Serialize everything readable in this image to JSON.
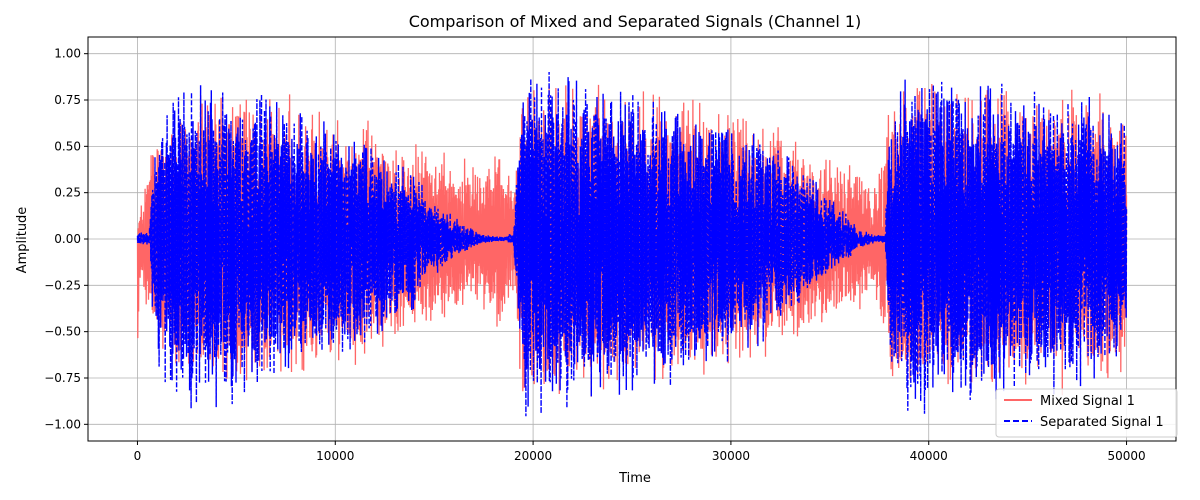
{
  "chart_data": {
    "type": "line",
    "title": "Comparison of Mixed and Separated Signals (Channel 1)",
    "xlabel": "Time",
    "ylabel": "Amplitude",
    "xlim": [
      -2500,
      52500
    ],
    "ylim": [
      -1.09,
      1.09
    ],
    "xticks": [
      0,
      10000,
      20000,
      30000,
      40000,
      50000
    ],
    "xtick_labels": [
      "0",
      "10000",
      "20000",
      "30000",
      "40000",
      "50000"
    ],
    "yticks": [
      -1.0,
      -0.75,
      -0.5,
      -0.25,
      0.0,
      0.25,
      0.5,
      0.75,
      1.0
    ],
    "ytick_labels": [
      "−1.00",
      "−0.75",
      "−0.50",
      "−0.25",
      "0.00",
      "0.25",
      "0.50",
      "0.75",
      "1.00"
    ],
    "grid": true,
    "legend_position": "lower-right",
    "series": [
      {
        "name": "Mixed Signal 1",
        "color": "#ff6666",
        "style": "solid",
        "envelope": {
          "x": [
            0,
            150,
            700,
            1500,
            2500,
            4000,
            6000,
            8000,
            10000,
            12000,
            14000,
            14500,
            16000,
            17500,
            18200,
            18800,
            19000,
            19500,
            22000,
            25000,
            28000,
            31000,
            33000,
            35000,
            36500,
            37200,
            37500,
            38000,
            40000,
            43000,
            46000,
            49000,
            50000
          ],
          "upper": [
            0.05,
            0.15,
            0.45,
            0.6,
            0.7,
            0.72,
            0.7,
            0.65,
            0.62,
            0.55,
            0.42,
            0.48,
            0.35,
            0.4,
            0.42,
            0.3,
            0.25,
            0.8,
            0.75,
            0.7,
            0.68,
            0.6,
            0.5,
            0.38,
            0.32,
            0.25,
            0.35,
            0.65,
            0.75,
            0.72,
            0.7,
            0.7,
            0.6
          ],
          "lower": [
            -0.75,
            -0.2,
            -0.45,
            -0.58,
            -0.65,
            -0.68,
            -0.68,
            -0.62,
            -0.6,
            -0.55,
            -0.42,
            -0.45,
            -0.35,
            -0.4,
            -0.42,
            -0.3,
            -0.25,
            -0.8,
            -0.75,
            -0.7,
            -0.66,
            -0.6,
            -0.5,
            -0.4,
            -0.33,
            -0.25,
            -0.35,
            -0.7,
            -0.75,
            -0.72,
            -0.7,
            -0.72,
            -0.6
          ]
        }
      },
      {
        "name": "Separated Signal 1",
        "color": "#0000ff",
        "style": "dashed",
        "envelope": {
          "x": [
            0,
            600,
            800,
            1500,
            2500,
            4000,
            6000,
            8000,
            10000,
            12000,
            14000,
            15000,
            16500,
            17500,
            18600,
            18700,
            19000,
            19500,
            22000,
            25000,
            28000,
            31000,
            33000,
            35000,
            36500,
            37200,
            37800,
            38000,
            39000,
            42000,
            45000,
            48000,
            50000
          ],
          "upper": [
            0.03,
            0.03,
            0.4,
            0.7,
            0.8,
            0.78,
            0.7,
            0.62,
            0.55,
            0.45,
            0.3,
            0.18,
            0.07,
            0.02,
            0.01,
            0.02,
            0.03,
            0.8,
            0.75,
            0.68,
            0.62,
            0.5,
            0.4,
            0.2,
            0.05,
            0.02,
            0.02,
            0.55,
            0.82,
            0.78,
            0.72,
            0.7,
            0.55
          ],
          "lower": [
            -0.03,
            -0.03,
            -0.45,
            -0.75,
            -0.82,
            -0.8,
            -0.72,
            -0.64,
            -0.58,
            -0.46,
            -0.32,
            -0.18,
            -0.07,
            -0.02,
            -0.01,
            -0.02,
            -0.03,
            -0.85,
            -0.8,
            -0.72,
            -0.64,
            -0.52,
            -0.4,
            -0.2,
            -0.05,
            -0.02,
            -0.02,
            -0.6,
            -0.85,
            -0.8,
            -0.75,
            -0.72,
            -0.55
          ]
        }
      }
    ]
  }
}
